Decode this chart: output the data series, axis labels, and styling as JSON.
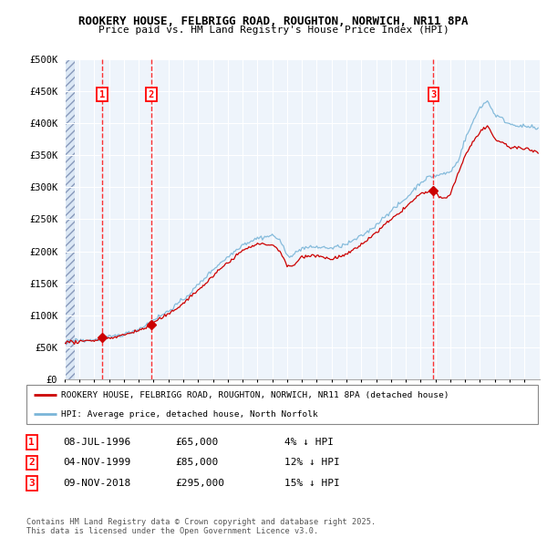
{
  "title1": "ROOKERY HOUSE, FELBRIGG ROAD, ROUGHTON, NORWICH, NR11 8PA",
  "title2": "Price paid vs. HM Land Registry's House Price Index (HPI)",
  "ylim": [
    0,
    500000
  ],
  "yticks": [
    0,
    50000,
    100000,
    150000,
    200000,
    250000,
    300000,
    350000,
    400000,
    450000,
    500000
  ],
  "ytick_labels": [
    "£0",
    "£50K",
    "£100K",
    "£150K",
    "£200K",
    "£250K",
    "£300K",
    "£350K",
    "£400K",
    "£450K",
    "£500K"
  ],
  "hpi_color": "#7ab5d8",
  "price_color": "#cc0000",
  "sale_dates": [
    1996.52,
    1999.84,
    2018.86
  ],
  "sale_prices": [
    65000,
    85000,
    295000
  ],
  "sale_labels": [
    "1",
    "2",
    "3"
  ],
  "legend_line1": "ROOKERY HOUSE, FELBRIGG ROAD, ROUGHTON, NORWICH, NR11 8PA (detached house)",
  "legend_line2": "HPI: Average price, detached house, North Norfolk",
  "table_rows": [
    [
      "1",
      "08-JUL-1996",
      "£65,000",
      "4% ↓ HPI"
    ],
    [
      "2",
      "04-NOV-1999",
      "£85,000",
      "12% ↓ HPI"
    ],
    [
      "3",
      "09-NOV-2018",
      "£295,000",
      "15% ↓ HPI"
    ]
  ],
  "footnote": "Contains HM Land Registry data © Crown copyright and database right 2025.\nThis data is licensed under the Open Government Licence v3.0.",
  "xmin": 1994.0,
  "xmax": 2026.0
}
